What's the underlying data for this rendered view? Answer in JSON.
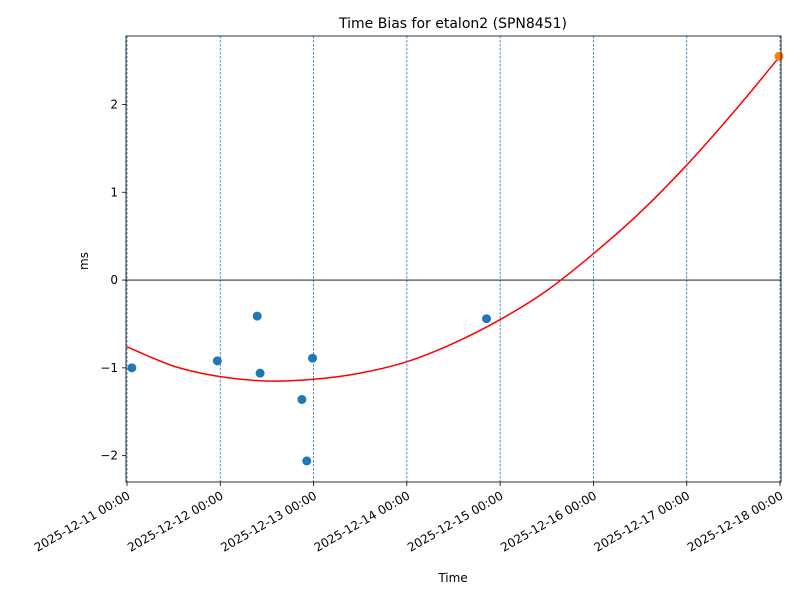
{
  "chart_data": {
    "type": "scatter",
    "title": "Time Bias for etalon2 (SPN8451)",
    "xlabel": "Time",
    "ylabel": "ms",
    "xlim": [
      "2025-12-10 23:45",
      "2025-12-18 00:15"
    ],
    "ylim": [
      -2.3,
      2.78
    ],
    "yticks": [
      -2,
      -1,
      0,
      1,
      2
    ],
    "ytick_labels": [
      "−2",
      "−1",
      "0",
      "1",
      "2"
    ],
    "xticks": [
      "2025-12-11 00:00",
      "2025-12-12 00:00",
      "2025-12-13 00:00",
      "2025-12-14 00:00",
      "2025-12-15 00:00",
      "2025-12-16 00:00",
      "2025-12-17 00:00",
      "2025-12-18 00:00"
    ],
    "xtick_labels": [
      "2025-12-11 00:00",
      "2025-12-12 00:00",
      "2025-12-13 00:00",
      "2025-12-14 00:00",
      "2025-12-15 00:00",
      "2025-12-16 00:00",
      "2025-12-17 00:00",
      "2025-12-18 00:00"
    ],
    "grid": "vertical dashed lines at x ticks",
    "zero_line": true,
    "points": {
      "color": "#1f77b4",
      "x": [
        "2025-12-11 01:15",
        "2025-12-11 23:15",
        "2025-12-12 09:30",
        "2025-12-12 10:15",
        "2025-12-12 21:00",
        "2025-12-12 22:15",
        "2025-12-12 23:45",
        "2025-12-14 20:30"
      ],
      "y": [
        -1.0,
        -0.92,
        -0.41,
        -1.06,
        -1.36,
        -2.06,
        -0.89,
        -0.44
      ]
    },
    "highlight_point": {
      "color": "#ff7f0e",
      "x": "2025-12-17 23:45",
      "y": 2.55
    },
    "fit_curve": {
      "color": "#ff0000",
      "x": [
        "2025-12-11 00:00",
        "2025-12-11 12:00",
        "2025-12-12 00:00",
        "2025-12-12 12:00",
        "2025-12-13 00:00",
        "2025-12-13 12:00",
        "2025-12-14 00:00",
        "2025-12-14 12:00",
        "2025-12-15 00:00",
        "2025-12-15 12:00",
        "2025-12-16 00:00",
        "2025-12-16 12:00",
        "2025-12-17 00:00",
        "2025-12-17 12:00",
        "2025-12-18 00:00"
      ],
      "y": [
        -0.76,
        -0.98,
        -1.1,
        -1.15,
        -1.13,
        -1.06,
        -0.93,
        -0.72,
        -0.45,
        -0.12,
        0.3,
        0.77,
        1.31,
        1.91,
        2.55
      ]
    }
  }
}
